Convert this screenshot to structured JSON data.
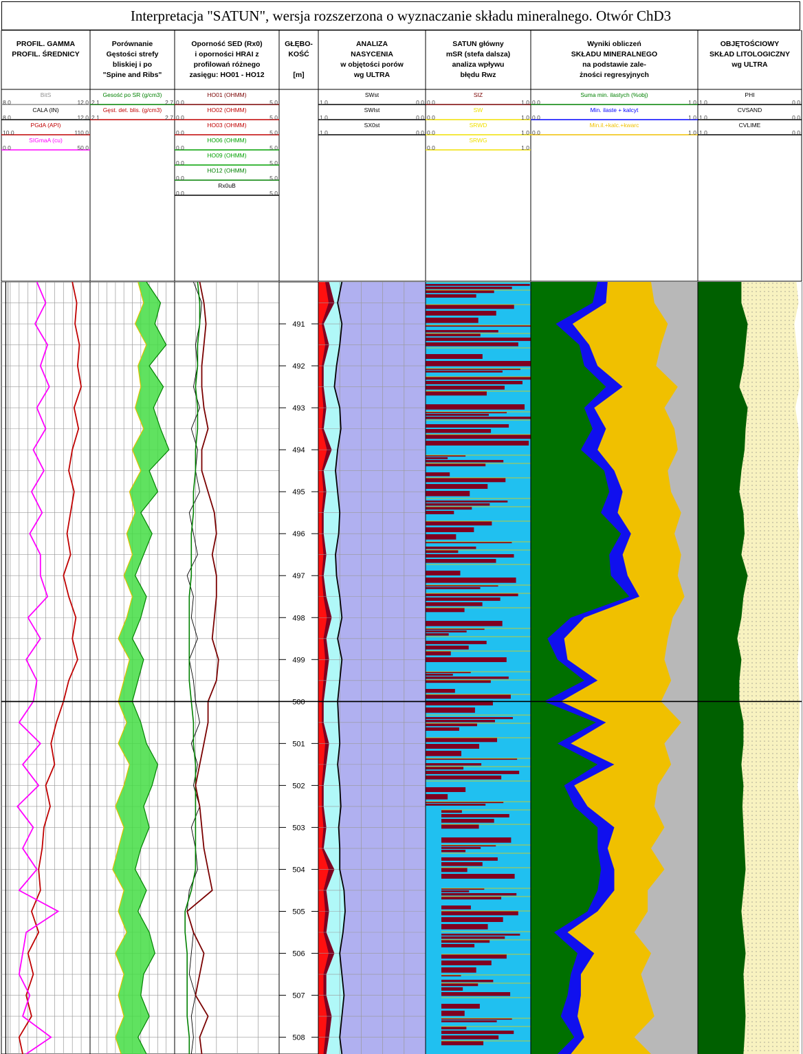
{
  "title": "Interpretacja \"SATUN\", wersja rozszerzona o wyznaczanie składu mineralnego. Otwór ChD3",
  "columns": [
    {
      "lines": [
        "PROFIL. GAMMA",
        "PROFIL. ŚREDNICY"
      ]
    },
    {
      "lines": [
        "Porównanie",
        "Gęstości strefy",
        "bliskiej i po",
        "\"Spine and Ribs\""
      ]
    },
    {
      "lines": [
        "Oporność SED (Rx0)",
        "i oporności HRAI z",
        "profilowań różnego",
        "zasięgu: HO01 - HO12"
      ]
    },
    {
      "lines": [
        "GŁĘBO-",
        "KOŚĆ",
        "",
        "[m]"
      ]
    },
    {
      "lines": [
        "ANALIZA",
        "NASYCENIA",
        "w objętości porów",
        "wg ULTRA"
      ]
    },
    {
      "lines": [
        "SATUN główny",
        "mSR (stefa dalsza)",
        "analiza wpływu",
        "błędu Rwz"
      ]
    },
    {
      "lines": [
        "Wyniki obliczeń",
        "SKŁADU MINERALNEGO",
        "na podstawie zale-",
        "żności regresyjnych"
      ]
    },
    {
      "lines": [
        "OBJĘTOŚCIOWY",
        "SKŁAD LITOLOGICZNY",
        "wg ULTRA"
      ]
    }
  ],
  "curve_headers": [
    [
      {
        "name": "BitS",
        "min": "8.0",
        "max": "12.0",
        "color": "#909090"
      },
      {
        "name": "CALA (IN)",
        "min": "8.0",
        "max": "12.0",
        "color": "#000000"
      },
      {
        "name": "PGdA (API)",
        "min": "10.0",
        "max": "110.0",
        "color": "#c00000"
      },
      {
        "name": "SIGmaA (cu)",
        "min": "0.0",
        "max": "50.0",
        "color": "#ff00ff"
      }
    ],
    [
      {
        "name": "Gesość po SR (g/cm3)",
        "min": "2.1",
        "max": "2.7",
        "color": "#008000"
      },
      {
        "name": "Gęst. det. blis. (g/cm3)",
        "min": "2.1",
        "max": "2.7",
        "color": "#c00000"
      }
    ],
    [
      {
        "name": "HO01 (OHMM)",
        "min": "0.0",
        "max": "5.0",
        "color": "#7a0000"
      },
      {
        "name": "HO02 (OHMM)",
        "min": "0.0",
        "max": "5.0",
        "color": "#c00000"
      },
      {
        "name": "HO03 (OHMM)",
        "min": "0.0",
        "max": "5.0",
        "color": "#c00000"
      },
      {
        "name": "HO06 (OHMM)",
        "min": "0.0",
        "max": "5.0",
        "color": "#00a000"
      },
      {
        "name": "HO09 (OHMM)",
        "min": "0.0",
        "max": "5.0",
        "color": "#00a000"
      },
      {
        "name": "HO12 (OHMM)",
        "min": "0.0",
        "max": "5.0",
        "color": "#008000"
      },
      {
        "name": "Rx0uB",
        "min": "0.0",
        "max": "5.0",
        "color": "#000000"
      }
    ],
    [],
    [
      {
        "name": "SWst",
        "min": "1.0",
        "max": "0.0",
        "color": "#000000"
      },
      {
        "name": "SWIst",
        "min": "1.0",
        "max": "0.0",
        "color": "#000000"
      },
      {
        "name": "SX0st",
        "min": "1.0",
        "max": "0.0",
        "color": "#000000"
      }
    ],
    [
      {
        "name": "SIZ",
        "min": "0.0",
        "max": "1.0",
        "color": "#7a0000"
      },
      {
        "name": "SW",
        "min": "0.0",
        "max": "1.0",
        "color": "#f0e000"
      },
      {
        "name": "SRWD",
        "min": "0.0",
        "max": "1.0",
        "color": "#f0e000"
      },
      {
        "name": "SRWG",
        "min": "0.0",
        "max": "1.0",
        "color": "#f0e000"
      }
    ],
    [
      {
        "name": "Suma min. ilastych (%obj)",
        "min": "0.0",
        "max": "1.0",
        "color": "#008000"
      },
      {
        "name": "Min. ilaste + kalcyt",
        "min": "0.0",
        "max": "1.0",
        "color": "#0000ff"
      },
      {
        "name": "Min.il.+kalc.+kwarc",
        "min": "0.0",
        "max": "1.0",
        "color": "#f0c000"
      }
    ],
    [
      {
        "name": "PHI",
        "min": "1.0",
        "max": "0.0",
        "color": "#000000"
      },
      {
        "name": "CVSAND",
        "min": "1.0",
        "max": "0.0",
        "color": "#000000"
      },
      {
        "name": "CVLIME",
        "min": "1.0",
        "max": "0.0",
        "color": "#000000"
      }
    ]
  ],
  "chart_data": {
    "type": "line",
    "ylabel": "[m]",
    "depth_range": [
      490,
      508.4
    ],
    "depth_ticks": [
      "491",
      "492",
      "493",
      "494",
      "495",
      "496",
      "497",
      "498",
      "499",
      "500",
      "501",
      "502",
      "503",
      "504",
      "505",
      "506",
      "507",
      "508"
    ],
    "depth": [
      490,
      490.5,
      491,
      491.5,
      492,
      492.5,
      493,
      493.5,
      494,
      494.5,
      495,
      495.5,
      496,
      496.5,
      497,
      497.5,
      498,
      498.5,
      499,
      499.5,
      500,
      500.5,
      501,
      501.5,
      502,
      502.5,
      503,
      503.5,
      504,
      504.5,
      505,
      505.5,
      506,
      506.5,
      507,
      507.5,
      508,
      508.4
    ],
    "series": [
      {
        "name": "CALA (IN)",
        "color": "#000000",
        "values": [
          8.2,
          8.2,
          8.2,
          8.2,
          8.2,
          8.2,
          8.2,
          8.2,
          8.2,
          8.2,
          8.2,
          8.2,
          8.2,
          8.2,
          8.2,
          8.2,
          8.2,
          8.2,
          8.2,
          8.2,
          8.2,
          8.2,
          8.2,
          8.2,
          8.2,
          8.2,
          8.2,
          8.2,
          8.2,
          8.2,
          8.2,
          8.2,
          8.2,
          8.2,
          8.2,
          8.2,
          8.2,
          8.2
        ]
      },
      {
        "name": "PGdA (API)",
        "color": "#c00000",
        "values": [
          90,
          95,
          93,
          98,
          96,
          100,
          92,
          97,
          90,
          86,
          92,
          88,
          84,
          88,
          80,
          86,
          94,
          90,
          96,
          86,
          80,
          72,
          66,
          70,
          60,
          65,
          58,
          56,
          52,
          54,
          44,
          52,
          40,
          46,
          38,
          44,
          30,
          34
        ]
      },
      {
        "name": "SIGmaA (cu)",
        "color": "#ff00ff",
        "values": [
          20,
          25,
          19,
          26,
          22,
          27,
          20,
          25,
          18,
          24,
          17,
          23,
          16,
          22,
          22,
          26,
          15,
          22,
          14,
          20,
          18,
          10,
          22,
          12,
          21,
          9,
          18,
          12,
          20,
          10,
          32,
          14,
          12,
          10,
          16,
          12,
          28,
          14
        ]
      },
      {
        "name": "Gesość po SR (g/cm3)",
        "color": "#008000",
        "values": [
          2.5,
          2.6,
          2.56,
          2.64,
          2.52,
          2.62,
          2.55,
          2.6,
          2.66,
          2.52,
          2.58,
          2.46,
          2.54,
          2.48,
          2.42,
          2.5,
          2.46,
          2.4,
          2.48,
          2.44,
          2.4,
          2.46,
          2.5,
          2.58,
          2.54,
          2.48,
          2.52,
          2.46,
          2.42,
          2.5,
          2.44,
          2.52,
          2.56,
          2.48,
          2.46,
          2.52,
          2.44,
          2.5
        ]
      },
      {
        "name": "Gęst. det. blis. (g/cm3)",
        "color": "#c00000",
        "values": [
          2.44,
          2.48,
          2.42,
          2.5,
          2.44,
          2.46,
          2.42,
          2.48,
          2.4,
          2.46,
          2.38,
          2.42,
          2.36,
          2.4,
          2.34,
          2.4,
          2.36,
          2.3,
          2.38,
          2.34,
          2.3,
          2.36,
          2.3,
          2.38,
          2.34,
          2.28,
          2.34,
          2.3,
          2.26,
          2.34,
          2.3,
          2.36,
          2.28,
          2.34,
          2.3,
          2.34,
          2.28,
          2.32
        ]
      },
      {
        "name": "HO01 (OHMM)",
        "color": "#7a0000",
        "values": [
          1.2,
          1.4,
          1.5,
          1.4,
          1.3,
          1.3,
          1.4,
          1.6,
          1.3,
          1.3,
          1.6,
          1.9,
          2.0,
          1.8,
          2.0,
          2.0,
          1.9,
          1.8,
          2.1,
          2.0,
          1.6,
          1.6,
          1.4,
          1.2,
          1.0,
          1.2,
          1.3,
          1.4,
          1.6,
          1.8,
          0.6,
          0.9,
          1.4,
          1.2,
          1.0,
          1.6,
          1.2,
          1.3
        ]
      },
      {
        "name": "HO12 (OHMM)",
        "color": "#008000",
        "values": [
          1.1,
          1.2,
          1.2,
          1.1,
          1.1,
          1.0,
          1.1,
          1.1,
          1.0,
          1.0,
          0.9,
          0.9,
          0.8,
          0.8,
          0.8,
          0.7,
          0.7,
          0.7,
          0.7,
          0.7,
          0.8,
          0.9,
          0.9,
          1.0,
          1.0,
          1.0,
          1.0,
          1.0,
          1.0,
          0.8,
          0.5,
          0.5,
          0.6,
          0.6,
          0.6,
          0.6,
          0.7,
          0.7
        ]
      },
      {
        "name": "Rx0uB",
        "color": "#000000",
        "values": [
          0.9,
          1.3,
          1.2,
          1.0,
          1.1,
          0.9,
          1.2,
          0.8,
          1.1,
          1.0,
          1.2,
          0.7,
          0.9,
          1.1,
          0.6,
          0.9,
          0.8,
          1.1,
          0.7,
          0.9,
          1.0,
          1.2,
          0.8,
          1.1,
          0.9,
          1.2,
          0.8,
          1.0,
          1.1,
          0.7,
          0.6,
          0.9,
          0.8,
          0.7,
          1.0,
          0.8,
          0.9,
          0.8
        ]
      },
      {
        "name": "SWst",
        "color": "#000000",
        "values": [
          0.78,
          0.82,
          0.78,
          0.8,
          0.83,
          0.85,
          0.8,
          0.79,
          0.82,
          0.84,
          0.82,
          0.8,
          0.81,
          0.84,
          0.83,
          0.8,
          0.78,
          0.82,
          0.78,
          0.8,
          0.82,
          0.81,
          0.8,
          0.82,
          0.8,
          0.79,
          0.81,
          0.8,
          0.8,
          0.76,
          0.75,
          0.77,
          0.8,
          0.78,
          0.76,
          0.78,
          0.8,
          0.78
        ]
      },
      {
        "name": "Min. ilaste + kalcyt",
        "color": "#0000ff",
        "values": [
          0.46,
          0.45,
          0.25,
          0.35,
          0.4,
          0.55,
          0.38,
          0.45,
          0.4,
          0.5,
          0.55,
          0.52,
          0.6,
          0.55,
          0.58,
          0.65,
          0.32,
          0.2,
          0.22,
          0.4,
          0.18,
          0.45,
          0.24,
          0.5,
          0.26,
          0.34,
          0.5,
          0.46,
          0.5,
          0.5,
          0.4,
          0.22,
          0.38,
          0.3,
          0.3,
          0.28,
          0.32,
          0.24
        ]
      },
      {
        "name": "Min.il.+kalc.+kwarc",
        "color": "#f0c000",
        "values": [
          0.72,
          0.74,
          0.82,
          0.78,
          0.75,
          0.88,
          0.8,
          0.86,
          0.88,
          0.82,
          0.84,
          0.9,
          0.86,
          0.9,
          0.88,
          0.92,
          0.85,
          0.82,
          0.8,
          0.84,
          0.78,
          0.9,
          0.8,
          0.84,
          0.76,
          0.74,
          0.8,
          0.72,
          0.8,
          0.7,
          0.7,
          0.62,
          0.72,
          0.66,
          0.7,
          0.74,
          0.62,
          0.72
        ]
      },
      {
        "name": "CVSAND",
        "color": "#000000",
        "values": [
          0.58,
          0.58,
          0.52,
          0.54,
          0.56,
          0.6,
          0.52,
          0.54,
          0.55,
          0.58,
          0.6,
          0.56,
          0.55,
          0.58,
          0.52,
          0.56,
          0.58,
          0.62,
          0.58,
          0.6,
          0.6,
          0.56,
          0.56,
          0.58,
          0.56,
          0.57,
          0.56,
          0.55,
          0.54,
          0.56,
          0.58,
          0.56,
          0.54,
          0.56,
          0.55,
          0.54,
          0.55,
          0.56
        ]
      },
      {
        "name": "PHI",
        "color": "#000000",
        "values": [
          0.05,
          0.03,
          0.07,
          0.05,
          0.03,
          0.02,
          0.06,
          0.03,
          0.02,
          0.04,
          0.03,
          0.04,
          0.02,
          0.03,
          0.03,
          0.02,
          0.03,
          0.02,
          0.04,
          0.03,
          0.02,
          0.02,
          0.03,
          0.02,
          0.04,
          0.02,
          0.02,
          0.03,
          0.02,
          0.02,
          0.03,
          0.02,
          0.02,
          0.02,
          0.02,
          0.02,
          0.02,
          0.02
        ]
      }
    ]
  }
}
